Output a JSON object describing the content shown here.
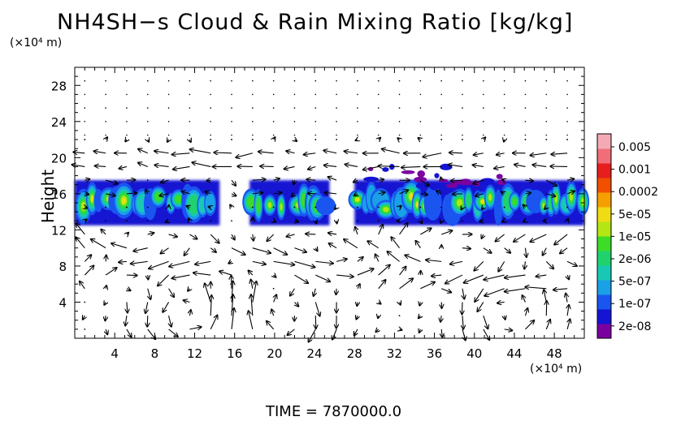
{
  "chart_data": {
    "type": "heatmap",
    "title": "NH4SH−s Cloud & Rain Mixing Ratio [kg/kg]",
    "ylabel": "Height",
    "y_unit": "(×10⁴ m)",
    "x_unit": "(×10⁴ m)",
    "xlim": [
      0,
      51
    ],
    "ylim": [
      0,
      30
    ],
    "x_ticks": [
      "4",
      "8",
      "12",
      "16",
      "20",
      "24",
      "28",
      "32",
      "36",
      "40",
      "44",
      "48"
    ],
    "y_ticks": [
      "4",
      "8",
      "12",
      "16",
      "20",
      "24",
      "28"
    ],
    "colorbar": {
      "labels": [
        "0.005",
        "0.001",
        "0.0002",
        "5e-05",
        "1e-05",
        "2e-06",
        "5e-07",
        "1e-07",
        "2e-08"
      ],
      "colors": [
        "#7a00a0",
        "#1414d2",
        "#1a55f0",
        "#19a0e6",
        "#19c8b4",
        "#1fd26e",
        "#3cdc28",
        "#b4e614",
        "#f0dc14",
        "#f5a000",
        "#f05000",
        "#e61e1e",
        "#f06e78",
        "#f4aab4"
      ]
    },
    "cloud_layer": {
      "height_range": [
        12.5,
        17.5
      ],
      "segments": [
        [
          0,
          14.5
        ],
        [
          17.5,
          25.5
        ],
        [
          28,
          51
        ]
      ],
      "upper_patches": [
        [
          28,
          32
        ],
        [
          33,
          43
        ]
      ],
      "peak_max": "0.0002"
    },
    "wind_vectors": {
      "circulation_cells_x": [
        11.5,
        20.5,
        43.5
      ],
      "cell_center_height": 3,
      "upper_flow_height": 20
    },
    "time_label": "TIME  =  7870000.0"
  }
}
